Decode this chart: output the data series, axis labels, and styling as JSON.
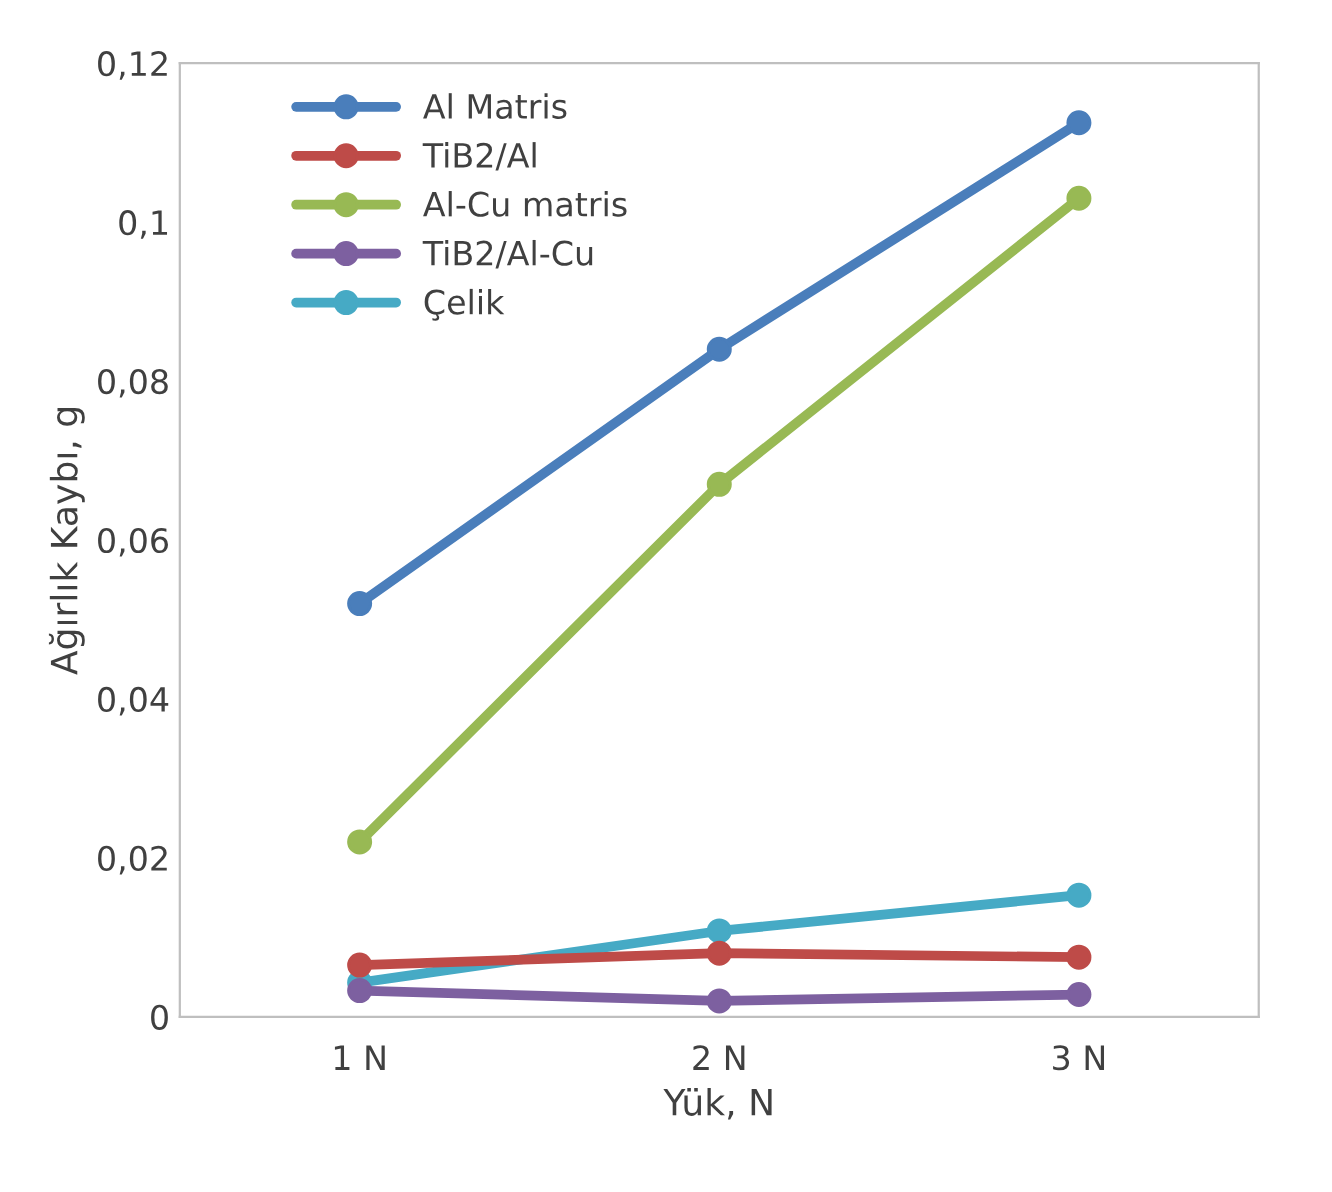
{
  "chart_data": {
    "type": "line",
    "xlabel": "Yük, N",
    "ylabel": "Ağırlık Kaybı, g",
    "categories": [
      "1 N",
      "2 N",
      "3 N"
    ],
    "series": [
      {
        "name": "Al Matris",
        "color": "#4a7ebb",
        "values": [
          0.052,
          0.084,
          0.1125
        ]
      },
      {
        "name": "TiB2/Al",
        "color": "#be4b48",
        "values": [
          0.0065,
          0.008,
          0.0075
        ]
      },
      {
        "name": "Al-Cu matris",
        "color": "#98b954",
        "values": [
          0.022,
          0.067,
          0.103
        ]
      },
      {
        "name": "TiB2/Al-Cu",
        "color": "#7d60a0",
        "values": [
          0.0033,
          0.002,
          0.0028
        ]
      },
      {
        "name": "Çelik",
        "color": "#46aac5",
        "values": [
          0.0043,
          0.0108,
          0.0153
        ]
      }
    ],
    "ylim": [
      0,
      0.12
    ],
    "yticks": [
      0,
      {
        "value": 0.02,
        "label": "0,02"
      },
      {
        "value": 0.04,
        "label": "0,04"
      },
      {
        "value": 0.06,
        "label": "0,06"
      },
      {
        "value": 0.08,
        "label": "0,08"
      },
      {
        "value": 0.1,
        "label": "0,1"
      },
      {
        "value": 0.12,
        "label": "0,12"
      }
    ],
    "marker": "circle",
    "line_style": "solid",
    "legend": "top left",
    "grid": false
  }
}
